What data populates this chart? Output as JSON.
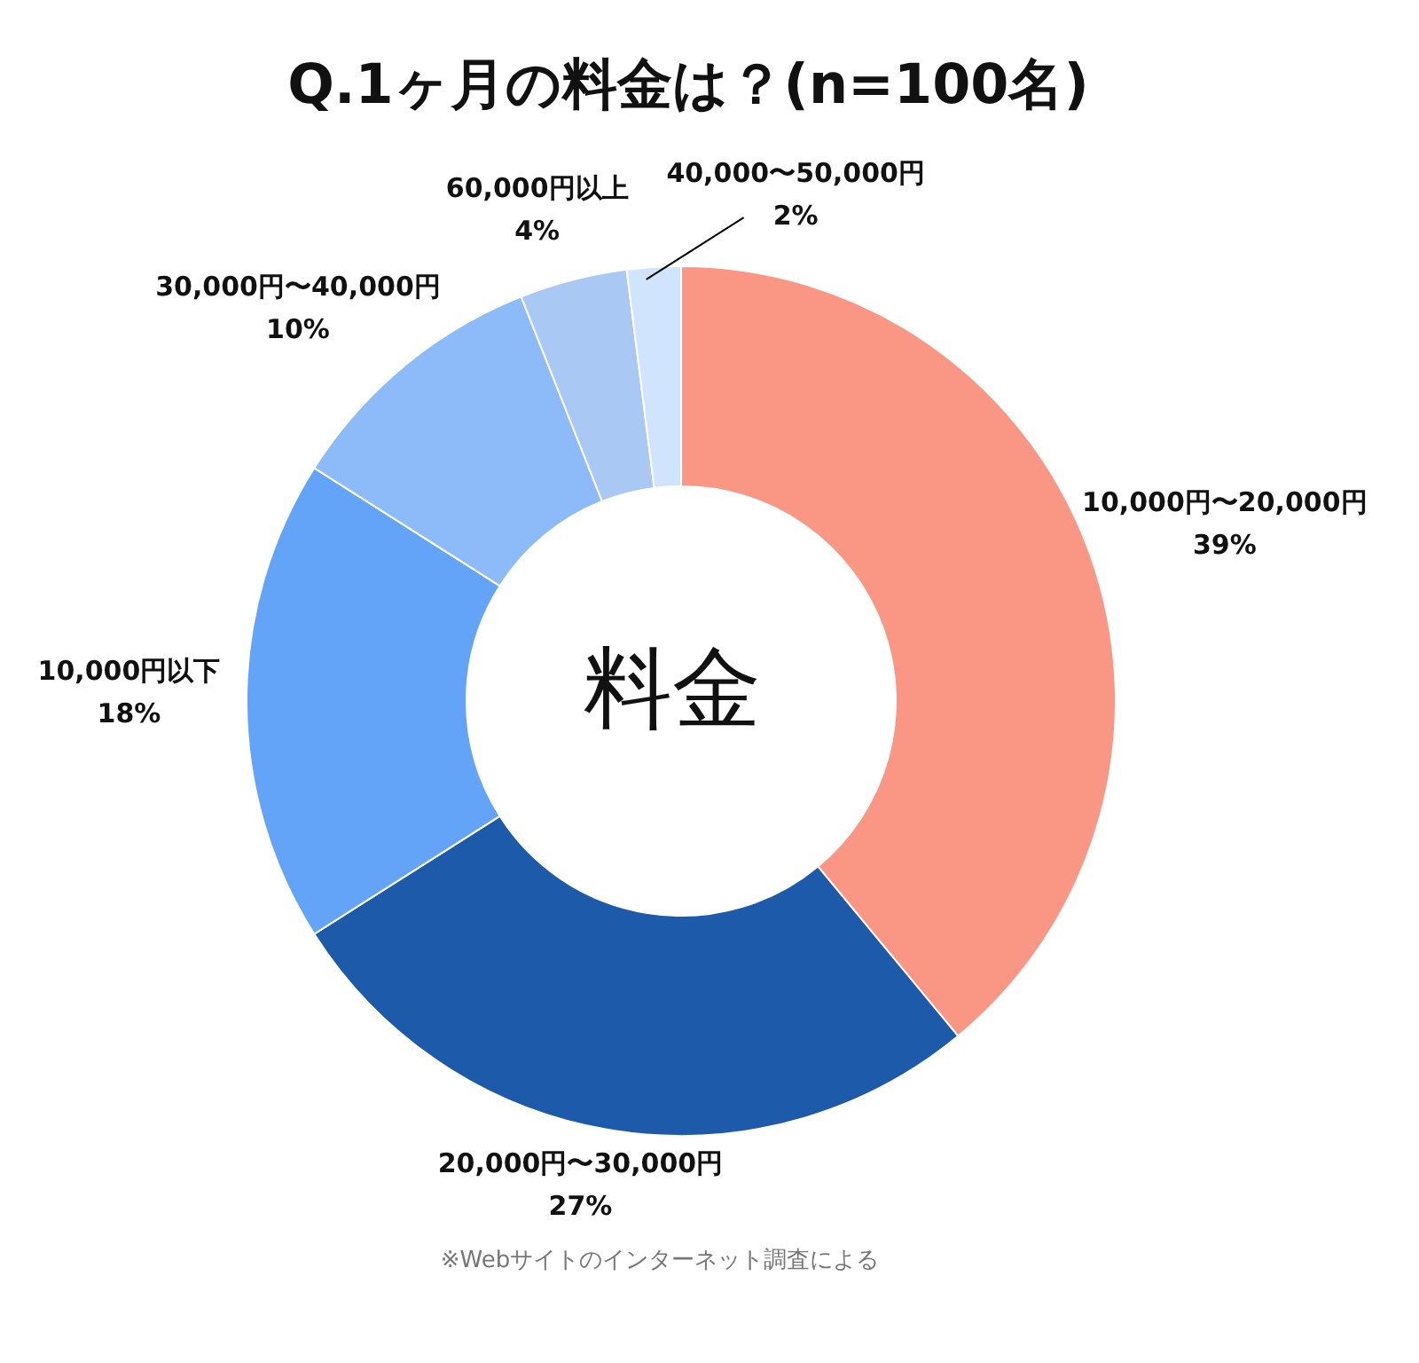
{
  "chart_data": {
    "type": "donut",
    "title": "Q.1ヶ月の料金は？(n=100名)",
    "categories": [
      "10,000円〜20,000円",
      "20,000円〜30,000円",
      "10,000円以下",
      "30,000円〜40,000円",
      "60,000円以上",
      "40,000〜50,000円"
    ],
    "values": [
      39,
      27,
      18,
      10,
      4,
      2
    ],
    "value_labels": [
      "39%",
      "27%",
      "18%",
      "10%",
      "4%",
      "2%"
    ],
    "colors": [
      "#f99784",
      "#1e5aaa",
      "#63a4f8",
      "#8dbbfa",
      "#a9c9f4",
      "#d1e4fd"
    ],
    "annotations": [
      "料金",
      "※Webサイトのインターネット調査による"
    ]
  }
}
